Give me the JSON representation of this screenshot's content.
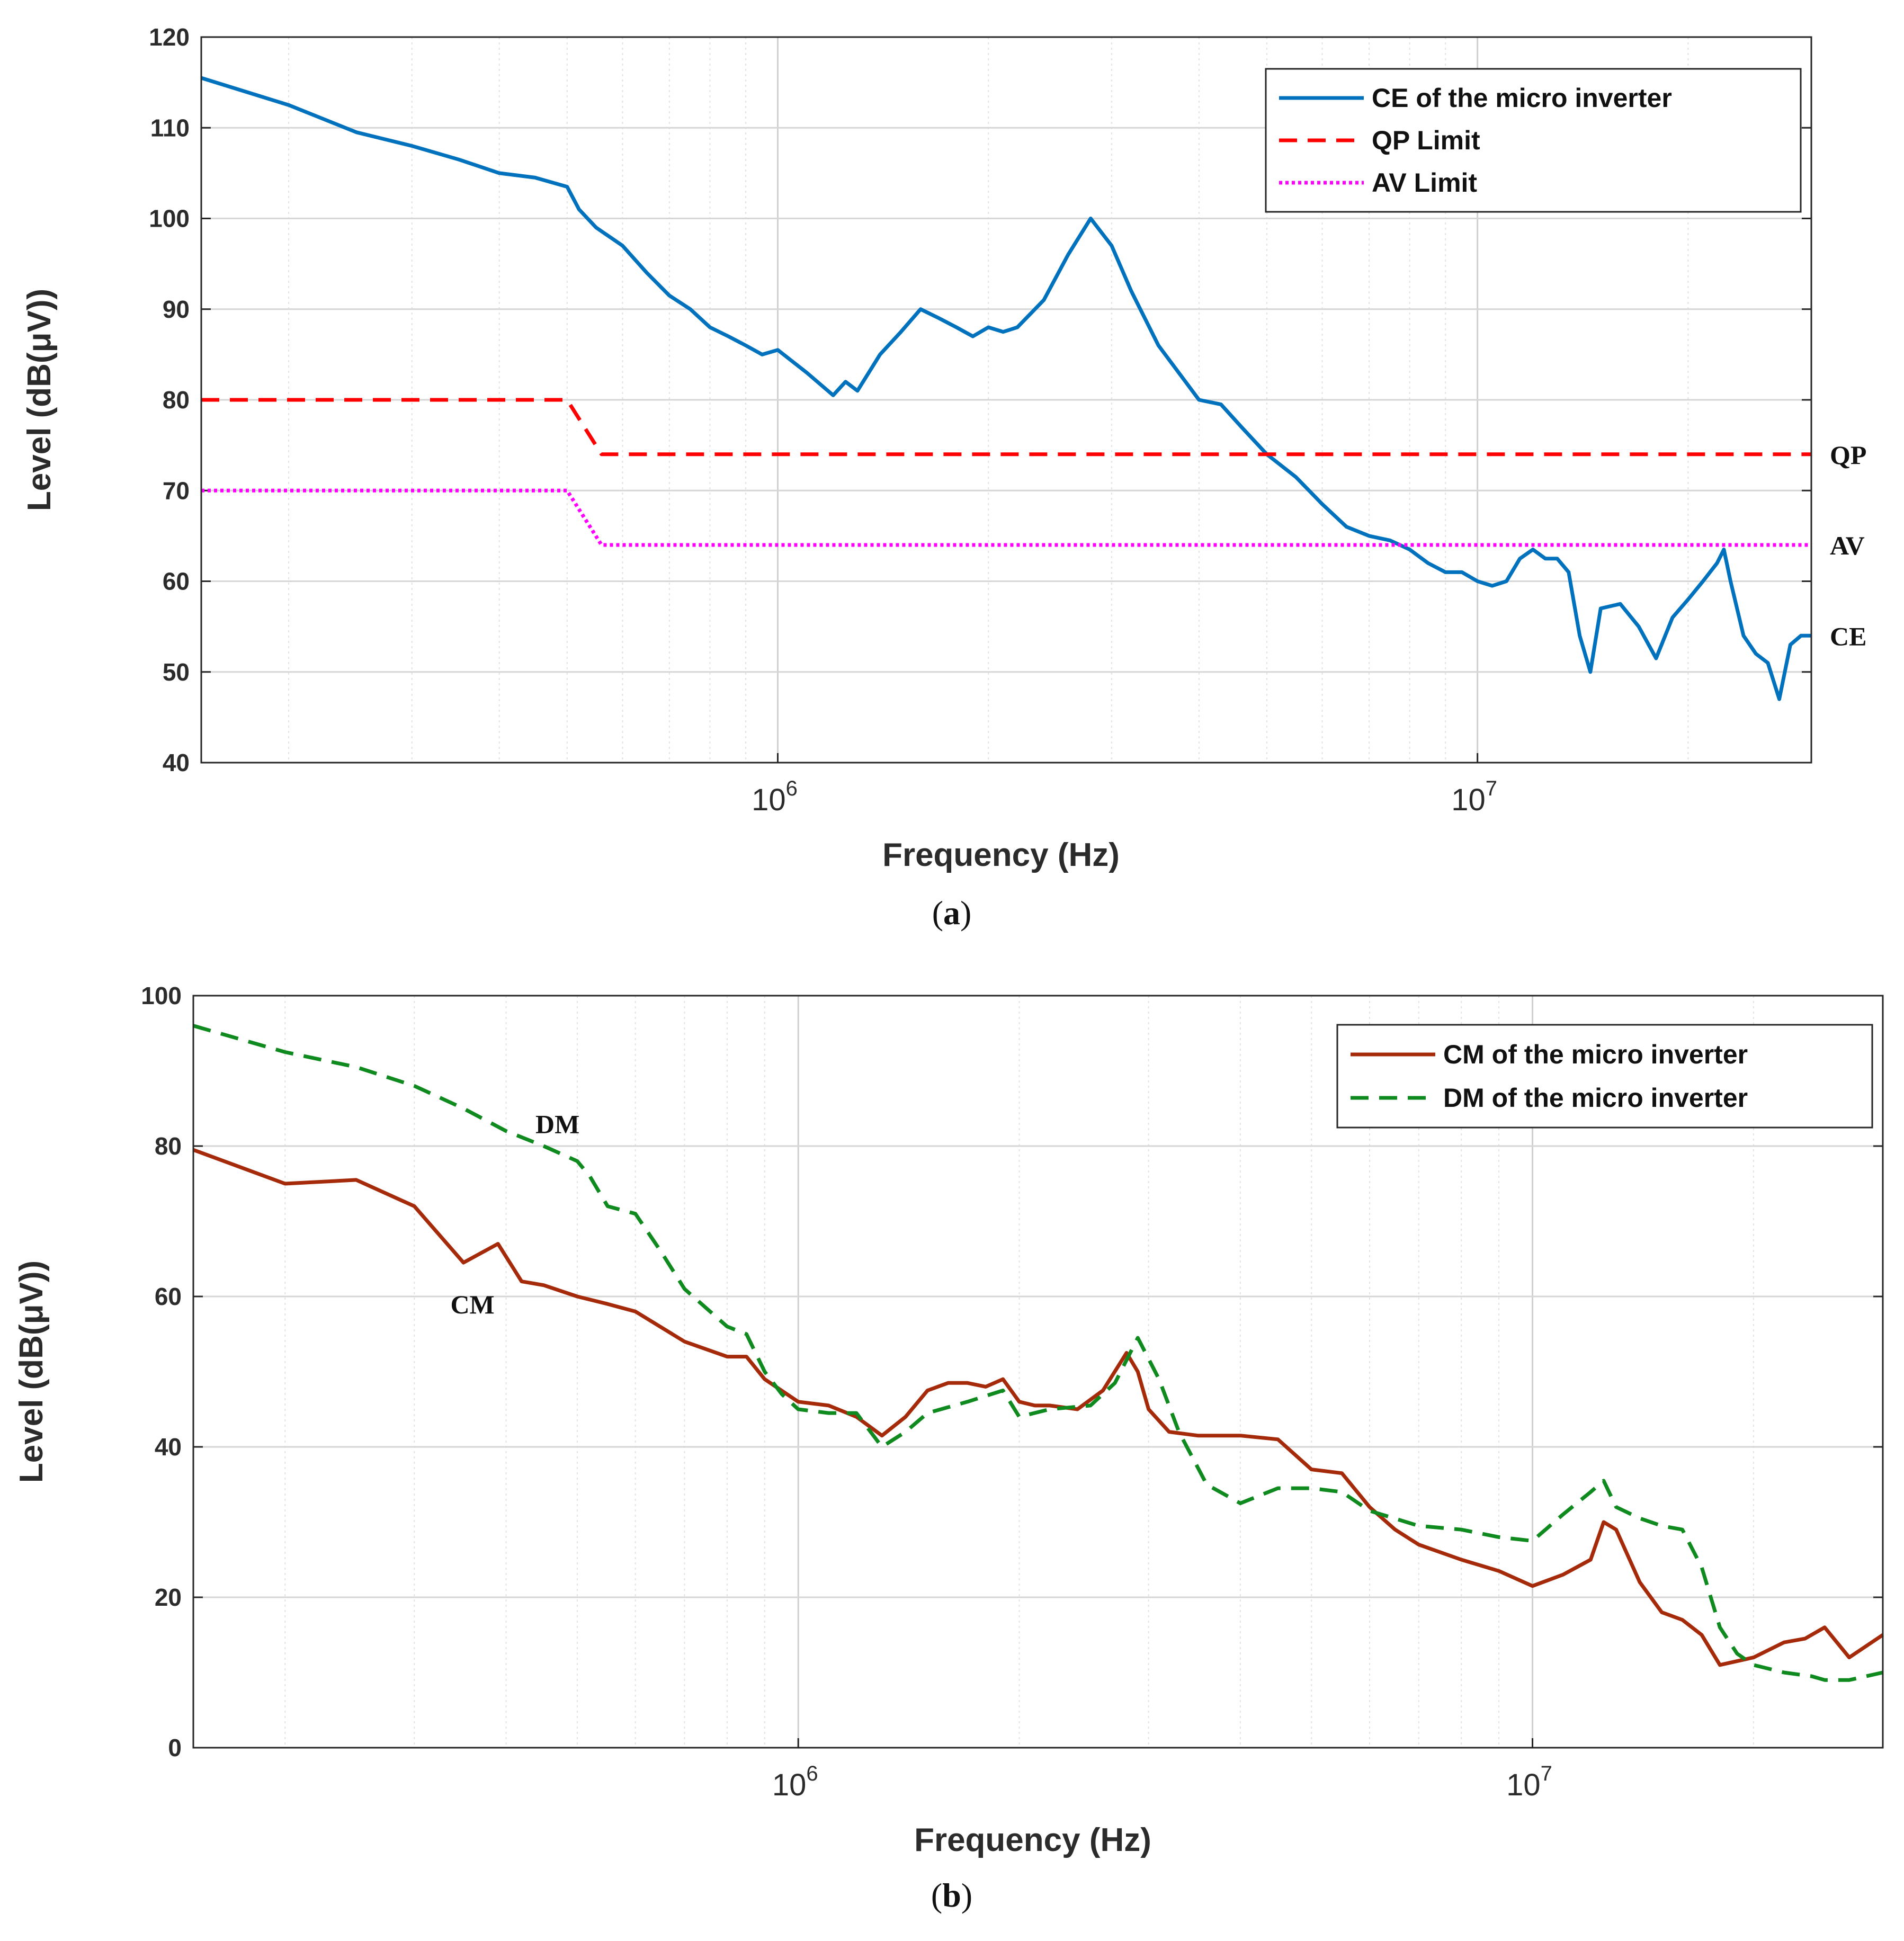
{
  "chart_data": [
    {
      "type": "line",
      "panel": "a",
      "caption_letter": "a",
      "xlabel": "Frequency (Hz)",
      "ylabel": "Level (dB(μV))",
      "xscale": "log",
      "xlim": [
        150000,
        30000000
      ],
      "ylim": [
        40,
        120
      ],
      "yticks": [
        40,
        50,
        60,
        70,
        80,
        90,
        100,
        110,
        120
      ],
      "xticks": [
        {
          "base": "10",
          "exp": "6",
          "value": 1000000
        },
        {
          "base": "10",
          "exp": "7",
          "value": 10000000
        }
      ],
      "grid": true,
      "legend_position": "top-right",
      "series": [
        {
          "name": "CE of the micro inverter",
          "color": "#0072BD",
          "style": "solid",
          "x": [
            150000,
            200000,
            250000,
            300000,
            350000,
            400000,
            450000,
            500000,
            520000,
            550000,
            600000,
            650000,
            700000,
            750000,
            800000,
            850000,
            900000,
            950000,
            1000000,
            1100000,
            1200000,
            1250000,
            1300000,
            1400000,
            1500000,
            1600000,
            1700000,
            1800000,
            1900000,
            2000000,
            2100000,
            2200000,
            2400000,
            2600000,
            2800000,
            3000000,
            3200000,
            3500000,
            4000000,
            4300000,
            4600000,
            5000000,
            5500000,
            6000000,
            6500000,
            7000000,
            7500000,
            8000000,
            8500000,
            9000000,
            9500000,
            10000000,
            10500000,
            11000000,
            11500000,
            12000000,
            12500000,
            13000000,
            13500000,
            14000000,
            14500000,
            15000000,
            16000000,
            17000000,
            18000000,
            19000000,
            20000000,
            21000000,
            22000000,
            22500000,
            23000000,
            24000000,
            25000000,
            26000000,
            27000000,
            28000000,
            29000000,
            30000000
          ],
          "y": [
            115.5,
            112.5,
            109.5,
            108,
            106.5,
            105,
            104.5,
            103.5,
            101,
            99,
            97,
            94,
            91.5,
            90,
            88,
            87,
            86,
            85,
            85.5,
            83,
            80.5,
            82,
            81,
            85,
            87.5,
            90,
            89,
            88,
            87,
            88,
            87.5,
            88,
            91,
            96,
            100,
            97,
            92,
            86,
            80,
            79.5,
            77,
            74,
            71.5,
            68.5,
            66,
            65,
            64.5,
            63.5,
            62,
            61,
            61,
            60,
            59.5,
            60,
            62.5,
            63.5,
            62.5,
            62.5,
            61,
            54,
            50,
            57,
            57.5,
            55,
            51.5,
            56,
            58,
            60,
            62,
            63.5,
            60,
            54,
            52,
            51,
            47,
            53,
            54,
            54
          ]
        },
        {
          "name": "QP Limit",
          "color": "#FF0000",
          "style": "dashed",
          "x": [
            150000,
            500000,
            560000,
            5000000,
            30000000
          ],
          "y": [
            80,
            80,
            74,
            74,
            74
          ]
        },
        {
          "name": "AV Limit",
          "color": "#FF00FF",
          "style": "dotted",
          "x": [
            150000,
            500000,
            560000,
            5000000,
            30000000
          ],
          "y": [
            70,
            70,
            64,
            64,
            64
          ]
        }
      ],
      "annotations": [
        {
          "text": "QP",
          "y": 74
        },
        {
          "text": "AV",
          "y": 64
        },
        {
          "text": "CE",
          "y": 54
        }
      ]
    },
    {
      "type": "line",
      "panel": "b",
      "caption_letter": "b",
      "xlabel": "Frequency (Hz)",
      "ylabel": "Level (dB(μV))",
      "xscale": "log",
      "xlim": [
        150000,
        30000000
      ],
      "ylim": [
        0,
        100
      ],
      "yticks": [
        0,
        20,
        40,
        60,
        80,
        100
      ],
      "xticks": [
        {
          "base": "10",
          "exp": "6",
          "value": 1000000
        },
        {
          "base": "10",
          "exp": "7",
          "value": 10000000
        }
      ],
      "grid": true,
      "legend_position": "top-right",
      "series": [
        {
          "name": "CM of the micro inverter",
          "color": "#A52A0A",
          "style": "solid",
          "x": [
            150000,
            200000,
            250000,
            300000,
            350000,
            390000,
            420000,
            450000,
            500000,
            550000,
            600000,
            700000,
            800000,
            850000,
            900000,
            1000000,
            1100000,
            1200000,
            1300000,
            1400000,
            1500000,
            1600000,
            1700000,
            1800000,
            1900000,
            2000000,
            2100000,
            2200000,
            2400000,
            2600000,
            2800000,
            2900000,
            3000000,
            3200000,
            3500000,
            4000000,
            4500000,
            5000000,
            5500000,
            6000000,
            6500000,
            7000000,
            8000000,
            9000000,
            10000000,
            11000000,
            12000000,
            12500000,
            13000000,
            14000000,
            15000000,
            16000000,
            17000000,
            18000000,
            20000000,
            22000000,
            23500000,
            25000000,
            27000000,
            30000000
          ],
          "y": [
            79.5,
            75,
            75.5,
            72,
            64.5,
            67,
            62,
            61.5,
            60,
            59,
            58,
            54,
            52,
            52,
            49,
            46,
            45.5,
            44,
            41.5,
            44,
            47.5,
            48.5,
            48.5,
            48,
            49,
            46,
            45.5,
            45.5,
            45,
            47.5,
            52.5,
            50,
            45,
            42,
            41.5,
            41.5,
            41,
            37,
            36.5,
            32,
            29,
            27,
            25,
            23.5,
            21.5,
            23,
            25,
            30,
            29,
            22,
            18,
            17,
            15,
            11,
            12,
            14,
            14.5,
            16,
            12,
            15
          ]
        },
        {
          "name": "DM of the micro inverter",
          "color": "#0F8A1E",
          "style": "dashed",
          "x": [
            150000,
            200000,
            250000,
            300000,
            350000,
            400000,
            450000,
            500000,
            520000,
            550000,
            600000,
            650000,
            700000,
            800000,
            850000,
            900000,
            950000,
            1000000,
            1100000,
            1200000,
            1300000,
            1400000,
            1500000,
            1700000,
            1900000,
            2000000,
            2200000,
            2500000,
            2700000,
            2900000,
            3100000,
            3300000,
            3600000,
            4000000,
            4500000,
            5000000,
            5500000,
            6000000,
            7000000,
            8000000,
            9000000,
            10000000,
            11000000,
            12000000,
            12500000,
            13000000,
            14000000,
            15000000,
            16000000,
            17000000,
            18000000,
            19000000,
            20000000,
            22000000,
            24000000,
            25000000,
            27000000,
            30000000
          ],
          "y": [
            96,
            92.5,
            90.5,
            88,
            85,
            82,
            80,
            78,
            76,
            72,
            71,
            66,
            61,
            56,
            55,
            50,
            47,
            45,
            44.5,
            44.5,
            40,
            42,
            44.5,
            46,
            47.5,
            44,
            45,
            45.5,
            48.5,
            54.5,
            49,
            42,
            35,
            32.5,
            34.5,
            34.5,
            34,
            31.5,
            29.5,
            29,
            28,
            27.5,
            31,
            34,
            35.5,
            32,
            30.5,
            29.5,
            29,
            24,
            16,
            12.5,
            11,
            10,
            9.5,
            9,
            9,
            10
          ]
        }
      ],
      "annotations": [
        {
          "text": "DM",
          "x": 470000,
          "y": 83
        },
        {
          "text": "CM",
          "x": 360000,
          "y": 59
        }
      ]
    }
  ]
}
